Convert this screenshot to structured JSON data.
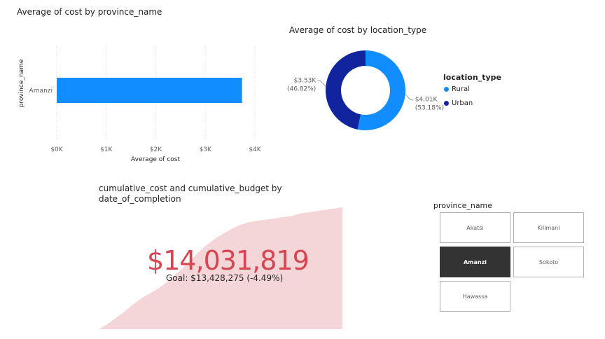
{
  "chart_data": [
    {
      "type": "bar",
      "title": "Average of cost by province_name",
      "xlabel": "Average of cost",
      "ylabel": "province_name",
      "categories": [
        "Amanzi"
      ],
      "values": [
        3740
      ],
      "xlim": [
        0,
        4000
      ],
      "x_ticks": [
        "$0K",
        "$1K",
        "$2K",
        "$3K",
        "$4K"
      ],
      "color": "#118dff",
      "grid": true
    },
    {
      "type": "pie",
      "variant": "donut",
      "title": "Average of cost by location_type",
      "legend_title": "location_type",
      "legend_placement": "right",
      "slices": [
        {
          "label": "Rural",
          "value": 4010,
          "value_label": "$4.01K",
          "percent_label": "(53.18%)",
          "color": "#118dff"
        },
        {
          "label": "Urban",
          "value": 3530,
          "value_label": "$3.53K",
          "percent_label": "(46.82%)",
          "color": "#12239e"
        }
      ]
    },
    {
      "type": "area",
      "title": "cumulative_cost and cumulative_budget by date_of_completion",
      "kpi_value": "$14,031,819",
      "kpi_goal": "Goal: $13,428,275 (-4.49%)",
      "kpi_color": "#d64550",
      "area_color": "#f4d6d9",
      "trend_y": [
        0.0,
        0.04,
        0.09,
        0.14,
        0.2,
        0.25,
        0.29,
        0.33,
        0.38,
        0.44,
        0.5,
        0.57,
        0.64,
        0.7,
        0.75,
        0.79,
        0.83,
        0.86,
        0.88,
        0.89,
        0.9,
        0.91,
        0.92,
        0.93,
        0.95,
        0.96,
        0.97,
        0.98,
        0.99,
        1.0
      ]
    }
  ],
  "slicer": {
    "title": "province_name",
    "options": [
      {
        "label": "Akatsi",
        "selected": false
      },
      {
        "label": "Kilimani",
        "selected": false
      },
      {
        "label": "Amanzi",
        "selected": true
      },
      {
        "label": "Sokoto",
        "selected": false
      },
      {
        "label": "Hawassa",
        "selected": false
      }
    ]
  }
}
